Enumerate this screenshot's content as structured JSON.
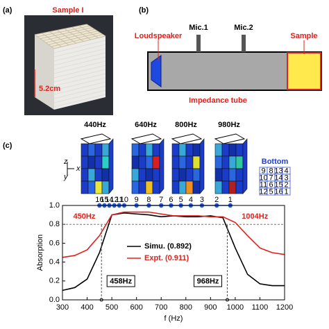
{
  "panels": {
    "a": {
      "label": "(a)",
      "sample": "Sample I",
      "size": "5.2cm"
    },
    "b": {
      "label": "(b)",
      "loudspeaker": "Loudspeaker",
      "mic1": "Mic.1",
      "mic2": "Mic.2",
      "sample": "Sample",
      "tube": "Impedance tube"
    },
    "c": {
      "label": "(c)",
      "maps": [
        "440Hz",
        "640Hz",
        "800Hz",
        "980Hz"
      ],
      "axes": {
        "z": "z",
        "x": "x",
        "y": "y"
      },
      "bottom": {
        "title": "Bottom",
        "rows": [
          [
            "9",
            "8",
            "13",
            "4"
          ],
          [
            "10",
            "7",
            "14",
            "3"
          ],
          [
            "11",
            "6",
            "15",
            "2"
          ],
          [
            "12",
            "5",
            "16",
            "1"
          ]
        ]
      }
    }
  },
  "chart_data": {
    "type": "line",
    "x_label": "f (Hz)",
    "y_label": "Absorption",
    "x": [
      300,
      350,
      400,
      450,
      500,
      550,
      600,
      650,
      700,
      750,
      800,
      850,
      900,
      950,
      1000,
      1050,
      1100,
      1150,
      1200
    ],
    "series": [
      {
        "name": "Simu. (0.892)",
        "color": "#000000",
        "values": [
          0.1,
          0.13,
          0.22,
          0.5,
          0.9,
          0.92,
          0.91,
          0.9,
          0.88,
          0.89,
          0.88,
          0.88,
          0.89,
          0.87,
          0.55,
          0.27,
          0.17,
          0.15,
          0.15
        ]
      },
      {
        "name": "Expt. (0.911)",
        "color": "#e0201b",
        "values": [
          0.45,
          0.47,
          0.53,
          0.68,
          0.9,
          0.93,
          0.93,
          0.93,
          0.91,
          0.89,
          0.89,
          0.89,
          0.88,
          0.88,
          0.82,
          0.68,
          0.55,
          0.5,
          0.48
        ]
      }
    ],
    "xlim": [
      300,
      1200
    ],
    "ylim": [
      0,
      1.0
    ],
    "xticks": [
      300,
      400,
      500,
      600,
      700,
      800,
      900,
      1000,
      1100,
      1200
    ],
    "yticks": [
      {
        "value": 0,
        "label": "0.0"
      },
      {
        "value": 0.2,
        "label": "0.2"
      },
      {
        "value": 0.4,
        "label": "0.4"
      },
      {
        "value": 0.6,
        "label": "0.6"
      },
      {
        "value": 0.8,
        "label": "0.8"
      },
      {
        "value": 1.0,
        "label": "1.0"
      }
    ],
    "reference_line": 0.8,
    "modes": {
      "color": "#2255dd",
      "labels": [
        "16",
        "15",
        "14",
        "12",
        "11",
        "10",
        "9",
        "8",
        "7",
        "6",
        "5",
        "4",
        "3",
        "2",
        "1"
      ],
      "x": [
        450,
        470,
        490,
        510,
        530,
        550,
        600,
        650,
        700,
        740,
        780,
        820,
        865,
        925,
        980
      ],
      "y": [
        1,
        1,
        1,
        1,
        1,
        1,
        1,
        1,
        1,
        1,
        1,
        1,
        1,
        1,
        1
      ]
    },
    "annotations": [
      {
        "text": "450Hz",
        "x": 450,
        "color": "#e0201b"
      },
      {
        "text": "1004Hz",
        "x": 1004,
        "color": "#e0201b"
      },
      {
        "text": "458Hz",
        "x": 458,
        "boxed": true
      },
      {
        "text": "968Hz",
        "x": 968,
        "boxed": true
      }
    ]
  }
}
